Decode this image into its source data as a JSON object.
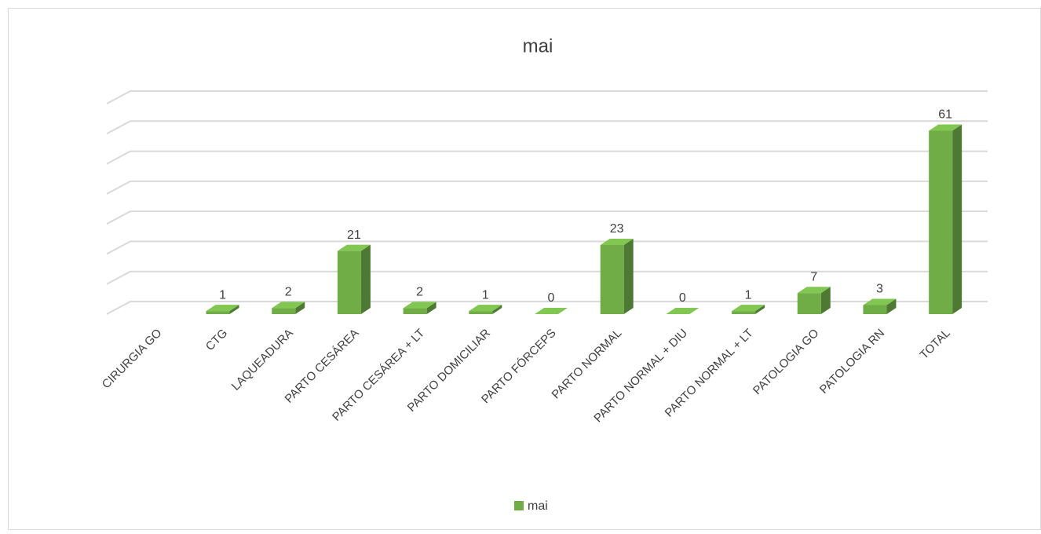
{
  "chart_data": {
    "type": "bar3d",
    "title": "mai",
    "categories": [
      "CIRURGIA GO",
      "CTG",
      "LAQUEADURA",
      "PARTO CESÁREA",
      "PARTO CESÁREA + LT",
      "PARTO DOMICILIAR",
      "PARTO FÓRCEPS",
      "PARTO NORMAL",
      "PARTO NORMAL + DIU",
      "PARTO NORMAL + LT",
      "PATOLOGIA GO",
      "PATOLOGIA RN",
      "TOTAL"
    ],
    "series": [
      {
        "name": "mai",
        "color": "#70ad47",
        "values": [
          null,
          1,
          2,
          21,
          2,
          1,
          0,
          23,
          0,
          1,
          7,
          3,
          61
        ]
      }
    ],
    "ylim": [
      0,
      70
    ],
    "yticks": [
      0,
      10,
      20,
      30,
      40,
      50,
      60,
      70
    ],
    "grid": true,
    "legend": "bottom"
  }
}
